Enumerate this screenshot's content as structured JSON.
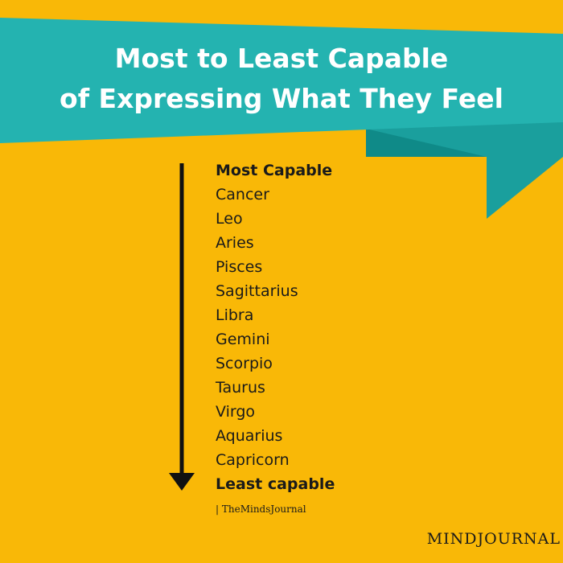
{
  "header": {
    "title_lines": [
      "Most to Least Capable",
      "of Expressing What They Feel"
    ]
  },
  "list": {
    "top_label": "Most Capable",
    "items": [
      "Cancer",
      "Leo",
      "Aries",
      "Pisces",
      "Sagittarius",
      "Libra",
      "Gemini",
      "Scorpio",
      "Taurus",
      "Virgo",
      "Aquarius",
      "Capricorn"
    ],
    "bottom_label": "Least capable"
  },
  "footer": {
    "credit": "| TheMindsJournal",
    "logo": "MINDJOURNAL"
  }
}
